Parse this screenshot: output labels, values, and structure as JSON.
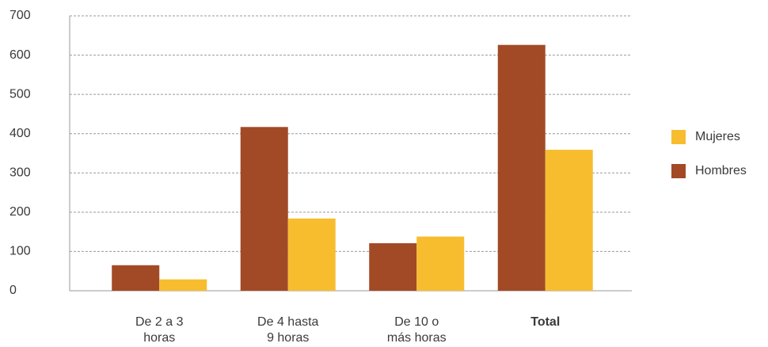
{
  "chart_data": {
    "type": "bar",
    "categories": [
      "De 2 a 3 horas",
      "De 4 hasta 9 horas",
      "De 10 o más horas",
      "Total"
    ],
    "series": [
      {
        "name": "Hombres",
        "color": "#a24a26",
        "values": [
          65,
          417,
          121,
          626
        ]
      },
      {
        "name": "Mujeres",
        "color": "#f7bd2f",
        "values": [
          29,
          184,
          138,
          359
        ]
      }
    ],
    "ylim": [
      0,
      700
    ],
    "yticks": [
      0,
      100,
      200,
      300,
      400,
      500,
      600,
      700
    ],
    "grid": true,
    "legend": "right"
  }
}
